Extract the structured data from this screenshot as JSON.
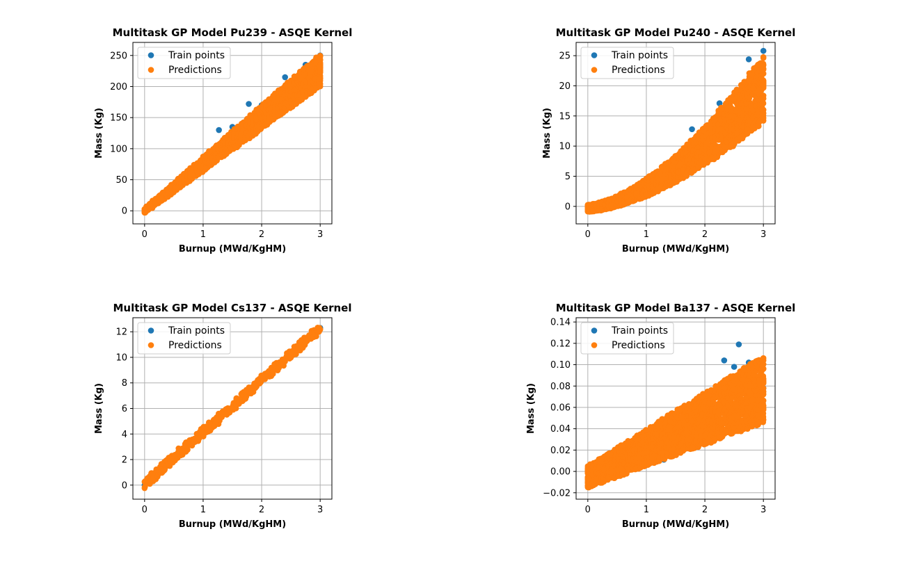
{
  "chart_data": [
    {
      "type": "scatter",
      "title": "Multitask GP Model Pu239 - ASQE Kernel",
      "xlabel": "Burnup (MWd/KgHM)",
      "ylabel": "Mass (Kg)",
      "xlim": [
        -0.2,
        3.2
      ],
      "ylim": [
        -21,
        271
      ],
      "xticks": [
        0,
        1,
        2,
        3
      ],
      "yticks": [
        0,
        50,
        100,
        150,
        200,
        250
      ],
      "grid": true,
      "legend_position": "upper-left",
      "series": [
        {
          "name": "Train points",
          "color": "#1f77b4",
          "points": [
            [
              0.0,
              0.0
            ],
            [
              0.5,
              42
            ],
            [
              1.0,
              85
            ],
            [
              1.27,
              130
            ],
            [
              1.5,
              135
            ],
            [
              1.78,
              172
            ],
            [
              2.0,
              170
            ],
            [
              2.4,
              215
            ],
            [
              2.75,
              235
            ],
            [
              3.0,
              250
            ]
          ]
        },
        {
          "name": "Predictions",
          "color": "#ff7f0e",
          "band": {
            "x0": 0.0,
            "x1": 3.0,
            "low0": -3,
            "low1": 200,
            "high0": 3,
            "high1": 252,
            "rows": 40,
            "cols": 56
          }
        }
      ]
    },
    {
      "type": "scatter",
      "title": "Multitask GP Model Pu240 - ASQE Kernel",
      "xlabel": "Burnup (MWd/KgHM)",
      "ylabel": "Mass (Kg)",
      "xlim": [
        -0.2,
        3.2
      ],
      "ylim": [
        -2.9,
        27.2
      ],
      "xticks": [
        0,
        1,
        2,
        3
      ],
      "yticks": [
        0,
        5,
        10,
        15,
        20,
        25
      ],
      "grid": true,
      "legend_position": "upper-left",
      "series": [
        {
          "name": "Train points",
          "color": "#1f77b4",
          "points": [
            [
              0.0,
              0.1
            ],
            [
              0.5,
              1.5
            ],
            [
              1.0,
              4.5
            ],
            [
              1.78,
              12.8
            ],
            [
              2.25,
              17.1
            ],
            [
              2.75,
              24.4
            ],
            [
              3.0,
              25.8
            ]
          ]
        },
        {
          "name": "Predictions",
          "color": "#ff7f0e",
          "band": {
            "x0": 0.0,
            "x1": 3.0,
            "low0": -0.9,
            "low1": 14.0,
            "high0": 0.3,
            "high1": 25.0,
            "curve": 1.6,
            "rows": 40,
            "cols": 56
          }
        }
      ]
    },
    {
      "type": "scatter",
      "title": "Multitask GP Model Cs137 - ASQE Kernel",
      "xlabel": "Burnup (MWd/KgHM)",
      "ylabel": "Mass (Kg)",
      "xlim": [
        -0.2,
        3.2
      ],
      "ylim": [
        -1.1,
        13.1
      ],
      "xticks": [
        0,
        1,
        2,
        3
      ],
      "yticks": [
        0,
        2,
        4,
        6,
        8,
        10,
        12
      ],
      "grid": true,
      "legend_position": "upper-left",
      "series": [
        {
          "name": "Train points",
          "color": "#1f77b4",
          "points": [
            [
              0.0,
              0.0
            ],
            [
              1.0,
              4.1
            ],
            [
              2.0,
              8.2
            ],
            [
              3.0,
              12.3
            ]
          ]
        },
        {
          "name": "Predictions",
          "color": "#ff7f0e",
          "band": {
            "x0": 0.0,
            "x1": 3.0,
            "low0": -0.25,
            "low1": 11.9,
            "high0": 0.45,
            "high1": 12.6,
            "rows": 6,
            "cols": 70
          }
        }
      ]
    },
    {
      "type": "scatter",
      "title": "Multitask GP Model Ba137 - ASQE Kernel",
      "xlabel": "Burnup (MWd/KgHM)",
      "ylabel": "Mass (Kg)",
      "xlim": [
        -0.2,
        3.2
      ],
      "ylim": [
        -0.026,
        0.144
      ],
      "xticks": [
        0,
        1,
        2,
        3
      ],
      "yticks": [
        -0.02,
        0.0,
        0.02,
        0.04,
        0.06,
        0.08,
        0.1,
        0.12,
        0.14
      ],
      "ytick_labels": [
        "−0.02",
        "0.00",
        "0.02",
        "0.04",
        "0.06",
        "0.08",
        "0.10",
        "0.12",
        "0.14"
      ],
      "grid": true,
      "legend_position": "upper-left",
      "series": [
        {
          "name": "Train points",
          "color": "#1f77b4",
          "points": [
            [
              0.0,
              0.0
            ],
            [
              1.3,
              0.011
            ],
            [
              1.8,
              0.064
            ],
            [
              2.33,
              0.104
            ],
            [
              2.5,
              0.098
            ],
            [
              2.58,
              0.119
            ],
            [
              2.75,
              0.102
            ],
            [
              3.0,
              0.078
            ]
          ]
        },
        {
          "name": "Predictions",
          "color": "#ff7f0e",
          "band": {
            "x0": 0.0,
            "x1": 3.0,
            "low0": -0.015,
            "low1": 0.045,
            "high0": 0.005,
            "high1": 0.108,
            "rows": 40,
            "cols": 56
          }
        }
      ]
    }
  ]
}
